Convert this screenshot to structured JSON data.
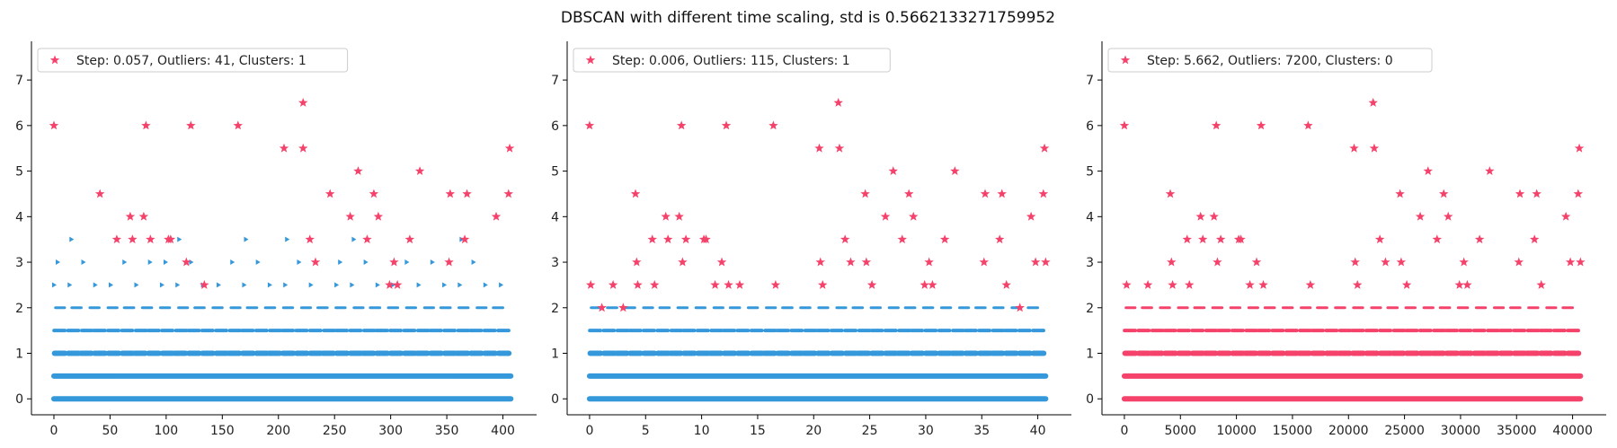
{
  "figure_title": "DBSCAN with different time scaling, std is 0.5662133271759952",
  "colors": {
    "core": "#3498db",
    "outlier": "#f5426a",
    "axis": "#000000"
  },
  "chart_data": [
    {
      "type": "scatter",
      "legend": "Step: 0.057, Outliers: 41, Clusters: 1",
      "xlim": [
        -20,
        430
      ],
      "ylim": [
        -0.35,
        7.85
      ],
      "xticks": [
        0,
        50,
        100,
        150,
        200,
        250,
        300,
        350,
        400
      ],
      "yticks": [
        0,
        1,
        2,
        3,
        4,
        5,
        6,
        7
      ],
      "xmax": 407,
      "series": [
        {
          "name": "core",
          "marker": "dot",
          "y_levels": [
            0,
            0.5,
            1,
            1.5,
            2
          ],
          "sparse_levels": [
            2.5,
            3,
            3.5
          ]
        },
        {
          "name": "outliers",
          "marker": "star",
          "points": [
            [
              0,
              6
            ],
            [
              41,
              4.5
            ],
            [
              56,
              3.5
            ],
            [
              68,
              4
            ],
            [
              70,
              3.5
            ],
            [
              80,
              4
            ],
            [
              82,
              6
            ],
            [
              86,
              3.5
            ],
            [
              102,
              3.5
            ],
            [
              104,
              3.5
            ],
            [
              122,
              6
            ],
            [
              118,
              3
            ],
            [
              134,
              2.5
            ],
            [
              164,
              6
            ],
            [
              205,
              5.5
            ],
            [
              222,
              6.5
            ],
            [
              222,
              5.5
            ],
            [
              228,
              3.5
            ],
            [
              233,
              3
            ],
            [
              246,
              4.5
            ],
            [
              264,
              4
            ],
            [
              271,
              5
            ],
            [
              279,
              3.5
            ],
            [
              285,
              4.5
            ],
            [
              289,
              4
            ],
            [
              299,
              2.5
            ],
            [
              303,
              3
            ],
            [
              306,
              2.5
            ],
            [
              317,
              3.5
            ],
            [
              326,
              5
            ],
            [
              352,
              3
            ],
            [
              353,
              4.5
            ],
            [
              366,
              3.5
            ],
            [
              368,
              4.5
            ],
            [
              394,
              4
            ],
            [
              405,
              4.5
            ],
            [
              406,
              5.5
            ]
          ]
        }
      ]
    },
    {
      "type": "scatter",
      "legend": "Step: 0.006, Outliers: 115, Clusters: 1",
      "xlim": [
        -2,
        43
      ],
      "ylim": [
        -0.35,
        7.85
      ],
      "xticks": [
        0,
        5,
        10,
        15,
        20,
        25,
        30,
        35,
        40
      ],
      "yticks": [
        0,
        1,
        2,
        3,
        4,
        5,
        6,
        7
      ],
      "xmax": 40.7,
      "series": [
        {
          "name": "core",
          "marker": "dot",
          "y_levels": [
            0,
            0.5,
            1,
            1.5,
            2
          ],
          "sparse_levels": []
        },
        {
          "name": "outliers",
          "marker": "star",
          "points": [
            [
              0,
              6
            ],
            [
              0.1,
              2.5
            ],
            [
              1.1,
              2
            ],
            [
              2.1,
              2.5
            ],
            [
              3,
              2
            ],
            [
              4.1,
              4.5
            ],
            [
              4.2,
              3
            ],
            [
              4.3,
              2.5
            ],
            [
              5.6,
              3.5
            ],
            [
              5.8,
              2.5
            ],
            [
              6.8,
              4
            ],
            [
              7,
              3.5
            ],
            [
              8,
              4
            ],
            [
              8.2,
              6
            ],
            [
              8.6,
              3.5
            ],
            [
              8.3,
              3
            ],
            [
              10.2,
              3.5
            ],
            [
              10.4,
              3.5
            ],
            [
              11.2,
              2.5
            ],
            [
              11.8,
              3
            ],
            [
              12.2,
              6
            ],
            [
              12.4,
              2.5
            ],
            [
              13.4,
              2.5
            ],
            [
              16.4,
              6
            ],
            [
              16.6,
              2.5
            ],
            [
              20.5,
              5.5
            ],
            [
              20.6,
              3
            ],
            [
              20.8,
              2.5
            ],
            [
              22.2,
              6.5
            ],
            [
              22.3,
              5.5
            ],
            [
              22.8,
              3.5
            ],
            [
              23.3,
              3
            ],
            [
              24.6,
              4.5
            ],
            [
              24.7,
              3
            ],
            [
              25.2,
              2.5
            ],
            [
              26.4,
              4
            ],
            [
              27.1,
              5
            ],
            [
              27.9,
              3.5
            ],
            [
              28.5,
              4.5
            ],
            [
              28.9,
              4
            ],
            [
              29.9,
              2.5
            ],
            [
              30.3,
              3
            ],
            [
              30.6,
              2.5
            ],
            [
              31.7,
              3.5
            ],
            [
              32.6,
              5
            ],
            [
              35.2,
              3
            ],
            [
              35.3,
              4.5
            ],
            [
              36.6,
              3.5
            ],
            [
              36.8,
              4.5
            ],
            [
              37.2,
              2.5
            ],
            [
              38.4,
              2
            ],
            [
              39.4,
              4
            ],
            [
              39.8,
              3
            ],
            [
              40.5,
              4.5
            ],
            [
              40.6,
              5.5
            ],
            [
              40.7,
              3
            ]
          ]
        }
      ]
    },
    {
      "type": "scatter",
      "legend": "Step: 5.662, Outliers: 7200, Clusters: 0",
      "xlim": [
        -2000,
        43000
      ],
      "ylim": [
        -0.35,
        7.85
      ],
      "xticks": [
        0,
        5000,
        10000,
        15000,
        20000,
        25000,
        30000,
        35000,
        40000
      ],
      "yticks": [
        0,
        1,
        2,
        3,
        4,
        5,
        6,
        7
      ],
      "xmax": 40700,
      "series": [
        {
          "name": "outliers",
          "marker": "star",
          "y_levels": [
            0,
            0.5,
            1,
            1.5,
            2
          ],
          "points": [
            [
              0,
              6
            ],
            [
              200,
              2.5
            ],
            [
              2100,
              2.5
            ],
            [
              4100,
              4.5
            ],
            [
              4200,
              3
            ],
            [
              4300,
              2.5
            ],
            [
              5600,
              3.5
            ],
            [
              5800,
              2.5
            ],
            [
              6800,
              4
            ],
            [
              7000,
              3.5
            ],
            [
              8000,
              4
            ],
            [
              8200,
              6
            ],
            [
              8600,
              3.5
            ],
            [
              8300,
              3
            ],
            [
              10200,
              3.5
            ],
            [
              10400,
              3.5
            ],
            [
              11200,
              2.5
            ],
            [
              11800,
              3
            ],
            [
              12200,
              6
            ],
            [
              12400,
              2.5
            ],
            [
              16400,
              6
            ],
            [
              16600,
              2.5
            ],
            [
              20500,
              5.5
            ],
            [
              20600,
              3
            ],
            [
              20800,
              2.5
            ],
            [
              22200,
              6.5
            ],
            [
              22300,
              5.5
            ],
            [
              22800,
              3.5
            ],
            [
              23300,
              3
            ],
            [
              24600,
              4.5
            ],
            [
              24700,
              3
            ],
            [
              25200,
              2.5
            ],
            [
              26400,
              4
            ],
            [
              27100,
              5
            ],
            [
              27900,
              3.5
            ],
            [
              28500,
              4.5
            ],
            [
              28900,
              4
            ],
            [
              29900,
              2.5
            ],
            [
              30300,
              3
            ],
            [
              30600,
              2.5
            ],
            [
              31700,
              3.5
            ],
            [
              32600,
              5
            ],
            [
              35200,
              3
            ],
            [
              35300,
              4.5
            ],
            [
              36600,
              3.5
            ],
            [
              36800,
              4.5
            ],
            [
              37200,
              2.5
            ],
            [
              39400,
              4
            ],
            [
              39800,
              3
            ],
            [
              40500,
              4.5
            ],
            [
              40600,
              5.5
            ],
            [
              40700,
              3
            ]
          ]
        }
      ]
    }
  ]
}
